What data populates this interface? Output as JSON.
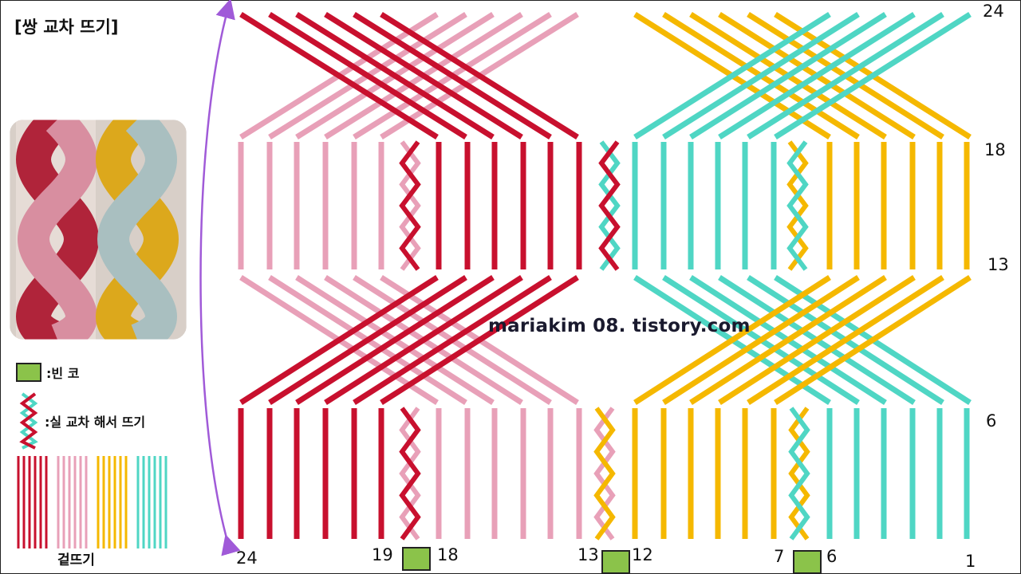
{
  "title": "[쌍 교차 뜨기]",
  "watermark": "mariakim 08. tistory.com",
  "legend": {
    "empty_stitch_label": ":빈 코",
    "cross_label": ":실 교차 해서 뜨기",
    "stripes_label": "겉뜨기"
  },
  "row_labels": {
    "r24": "24",
    "r18": "18",
    "r13": "13",
    "r6": "6"
  },
  "stitch_labels": {
    "s24": "24",
    "s19": "19",
    "s18": "18",
    "s13": "13",
    "s12": "12",
    "s7": "7",
    "s6": "6",
    "s1": "1"
  },
  "colors": {
    "red": "#c8102e",
    "pink": "#e8a0b8",
    "yellow": "#f5b800",
    "teal": "#4fd6c4",
    "green": "#8bc34a",
    "purple": "#a05ad8"
  }
}
